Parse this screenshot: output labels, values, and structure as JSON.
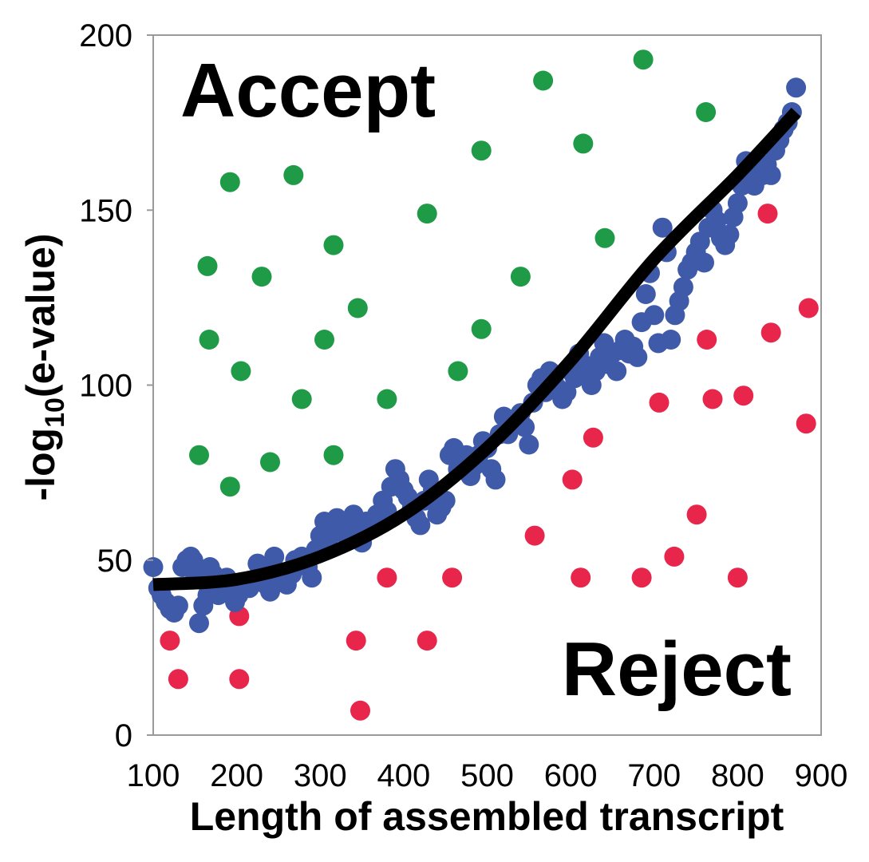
{
  "chart_data": {
    "type": "scatter",
    "title": "",
    "xlabel": "Length of assembled transcript",
    "ylabel_prefix": "-log",
    "ylabel_subscript": "10",
    "ylabel_suffix": "(e-value)",
    "xlim": [
      100,
      900
    ],
    "ylim": [
      0,
      200
    ],
    "xticks": [
      100,
      200,
      300,
      400,
      500,
      600,
      700,
      800,
      900
    ],
    "yticks": [
      0,
      50,
      100,
      150,
      200
    ],
    "grid": false,
    "annotations": {
      "accept": "Accept",
      "reject": "Reject"
    },
    "colors": {
      "blue": "#3f5aa8",
      "green": "#1f9a47",
      "red": "#e8254a",
      "curve": "#000000",
      "frame": "#9a9a9a"
    },
    "curve": {
      "type": "polynomial-fit",
      "points": [
        [
          100,
          43
        ],
        [
          200,
          44.5
        ],
        [
          300,
          51
        ],
        [
          400,
          63
        ],
        [
          500,
          82
        ],
        [
          600,
          107
        ],
        [
          700,
          136
        ],
        [
          800,
          160
        ],
        [
          870,
          178
        ]
      ]
    },
    "series": [
      {
        "color_key": "green",
        "points": [
          [
            155,
            80
          ],
          [
            165,
            134
          ],
          [
            167,
            113
          ],
          [
            192,
            158
          ],
          [
            192,
            71
          ],
          [
            205,
            104
          ],
          [
            230,
            131
          ],
          [
            240,
            78
          ],
          [
            268,
            160
          ],
          [
            278,
            96
          ],
          [
            305,
            113
          ],
          [
            316,
            140
          ],
          [
            316,
            80
          ],
          [
            345,
            122
          ],
          [
            380,
            96
          ],
          [
            428,
            149
          ],
          [
            465,
            104
          ],
          [
            493,
            167
          ],
          [
            493,
            116
          ],
          [
            540,
            131
          ],
          [
            567,
            187
          ],
          [
            615,
            169
          ],
          [
            641,
            142
          ],
          [
            687,
            193
          ],
          [
            762,
            178
          ]
        ]
      },
      {
        "color_key": "red",
        "points": [
          [
            120,
            27
          ],
          [
            130,
            16
          ],
          [
            203,
            34
          ],
          [
            203,
            16
          ],
          [
            343,
            27
          ],
          [
            348,
            7
          ],
          [
            380,
            45
          ],
          [
            428,
            27
          ],
          [
            458,
            45
          ],
          [
            557,
            57
          ],
          [
            602,
            73
          ],
          [
            612,
            45
          ],
          [
            627,
            85
          ],
          [
            685,
            45
          ],
          [
            706,
            95
          ],
          [
            724,
            51
          ],
          [
            751,
            63
          ],
          [
            763,
            113
          ],
          [
            770,
            96
          ],
          [
            800,
            45
          ],
          [
            807,
            97
          ],
          [
            836,
            149
          ],
          [
            840,
            115
          ],
          [
            882,
            89
          ],
          [
            885,
            122
          ]
        ]
      },
      {
        "color_key": "blue",
        "points": [
          [
            100,
            48
          ],
          [
            106,
            42
          ],
          [
            110,
            40
          ],
          [
            115,
            38
          ],
          [
            120,
            36
          ],
          [
            125,
            35
          ],
          [
            130,
            37
          ],
          [
            135,
            48
          ],
          [
            140,
            50
          ],
          [
            145,
            51
          ],
          [
            148,
            50
          ],
          [
            150,
            46
          ],
          [
            155,
            32
          ],
          [
            160,
            37
          ],
          [
            165,
            40
          ],
          [
            168,
            48
          ],
          [
            172,
            46
          ],
          [
            178,
            40
          ],
          [
            182,
            44
          ],
          [
            188,
            45
          ],
          [
            192,
            41
          ],
          [
            198,
            38
          ],
          [
            202,
            40
          ],
          [
            208,
            43
          ],
          [
            215,
            42
          ],
          [
            220,
            44
          ],
          [
            225,
            49
          ],
          [
            230,
            47
          ],
          [
            235,
            43
          ],
          [
            240,
            41
          ],
          [
            245,
            51
          ],
          [
            250,
            46
          ],
          [
            256,
            44
          ],
          [
            260,
            43
          ],
          [
            266,
            46
          ],
          [
            270,
            50
          ],
          [
            278,
            51
          ],
          [
            285,
            48
          ],
          [
            290,
            45
          ],
          [
            295,
            53
          ],
          [
            300,
            57
          ],
          [
            305,
            61
          ],
          [
            310,
            56
          ],
          [
            315,
            60
          ],
          [
            320,
            62
          ],
          [
            325,
            58
          ],
          [
            330,
            60
          ],
          [
            335,
            56
          ],
          [
            340,
            63
          ],
          [
            345,
            59
          ],
          [
            350,
            55
          ],
          [
            355,
            61
          ],
          [
            360,
            60
          ],
          [
            368,
            63
          ],
          [
            375,
            67
          ],
          [
            380,
            64
          ],
          [
            385,
            71
          ],
          [
            390,
            76
          ],
          [
            395,
            73
          ],
          [
            400,
            70
          ],
          [
            405,
            68
          ],
          [
            410,
            65
          ],
          [
            415,
            62
          ],
          [
            420,
            60
          ],
          [
            425,
            67
          ],
          [
            430,
            73
          ],
          [
            435,
            70
          ],
          [
            440,
            63
          ],
          [
            445,
            65
          ],
          [
            450,
            67
          ],
          [
            455,
            80
          ],
          [
            460,
            82
          ],
          [
            465,
            76
          ],
          [
            470,
            78
          ],
          [
            475,
            80
          ],
          [
            480,
            74
          ],
          [
            485,
            77
          ],
          [
            490,
            80
          ],
          [
            495,
            84
          ],
          [
            500,
            82
          ],
          [
            505,
            76
          ],
          [
            510,
            73
          ],
          [
            515,
            86
          ],
          [
            520,
            91
          ],
          [
            525,
            86
          ],
          [
            530,
            90
          ],
          [
            535,
            89
          ],
          [
            540,
            92
          ],
          [
            545,
            88
          ],
          [
            550,
            83
          ],
          [
            555,
            95
          ],
          [
            560,
            100
          ],
          [
            565,
            102
          ],
          [
            570,
            98
          ],
          [
            575,
            104
          ],
          [
            580,
            101
          ],
          [
            585,
            99
          ],
          [
            590,
            96
          ],
          [
            595,
            98
          ],
          [
            600,
            104
          ],
          [
            605,
            102
          ],
          [
            610,
            109
          ],
          [
            615,
            106
          ],
          [
            620,
            103
          ],
          [
            625,
            100
          ],
          [
            630,
            104
          ],
          [
            635,
            108
          ],
          [
            640,
            112
          ],
          [
            645,
            106
          ],
          [
            650,
            109
          ],
          [
            655,
            104
          ],
          [
            660,
            110
          ],
          [
            665,
            113
          ],
          [
            670,
            109
          ],
          [
            675,
            111
          ],
          [
            680,
            108
          ],
          [
            685,
            118
          ],
          [
            690,
            126
          ],
          [
            695,
            132
          ],
          [
            700,
            120
          ],
          [
            705,
            112
          ],
          [
            710,
            145
          ],
          [
            715,
            138
          ],
          [
            720,
            113
          ],
          [
            725,
            120
          ],
          [
            730,
            124
          ],
          [
            735,
            128
          ],
          [
            740,
            133
          ],
          [
            745,
            135
          ],
          [
            750,
            138
          ],
          [
            755,
            141
          ],
          [
            760,
            135
          ],
          [
            765,
            145
          ],
          [
            770,
            150
          ],
          [
            775,
            147
          ],
          [
            780,
            142
          ],
          [
            785,
            140
          ],
          [
            790,
            143
          ],
          [
            795,
            148
          ],
          [
            800,
            152
          ],
          [
            805,
            157
          ],
          [
            810,
            164
          ],
          [
            815,
            160
          ],
          [
            820,
            157
          ],
          [
            825,
            162
          ],
          [
            830,
            160
          ],
          [
            835,
            163
          ],
          [
            840,
            160
          ],
          [
            845,
            167
          ],
          [
            850,
            170
          ],
          [
            855,
            173
          ],
          [
            860,
            175
          ],
          [
            865,
            178
          ],
          [
            870,
            185
          ]
        ]
      }
    ]
  }
}
